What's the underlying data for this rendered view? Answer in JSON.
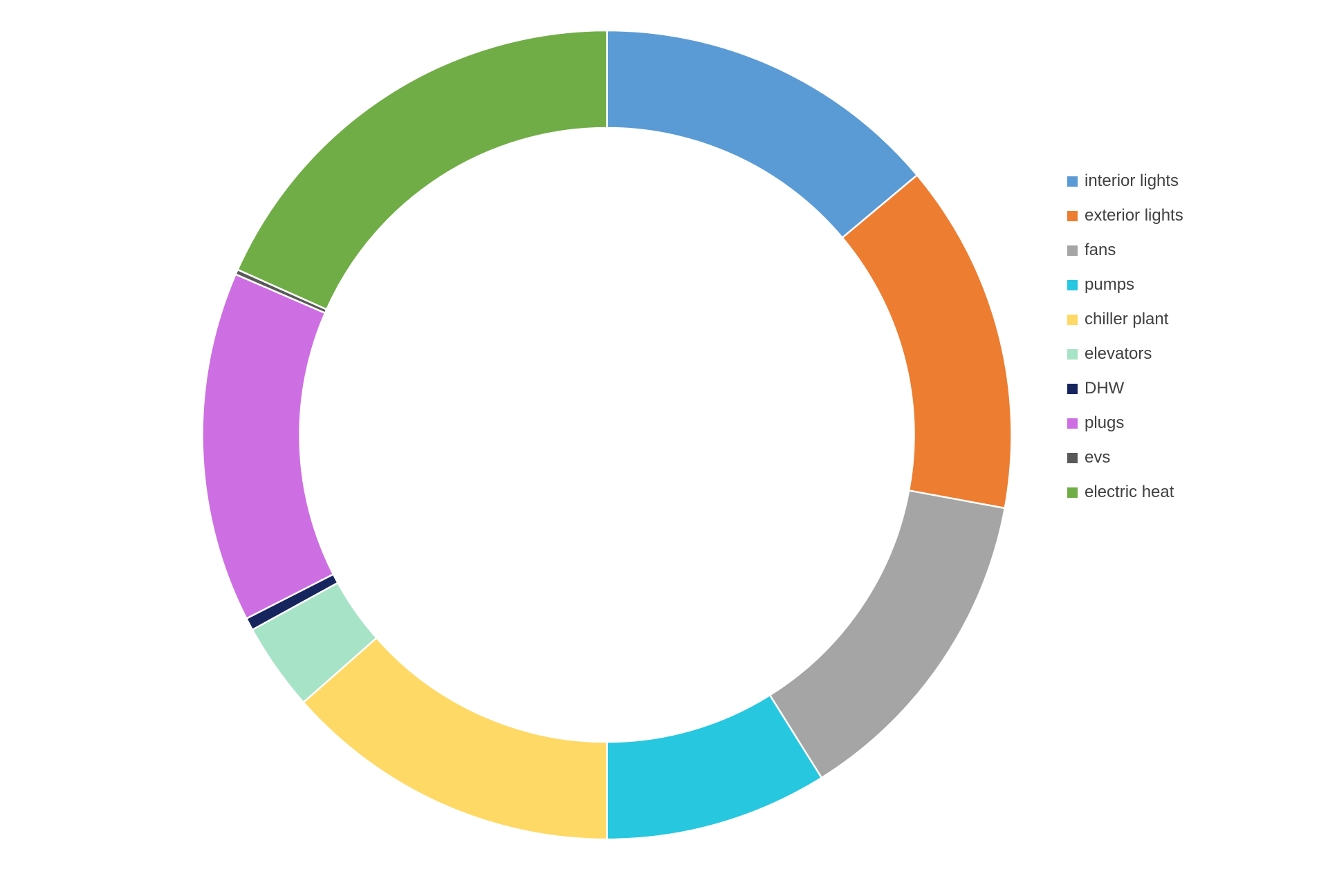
{
  "page": {
    "background_color": "#ffffff",
    "title": ""
  },
  "chart_data": {
    "type": "pie",
    "subtype": "donut",
    "title": "",
    "legend_position": "right",
    "donut_hole_ratio": 0.76,
    "start_angle_deg": 0,
    "direction": "clockwise",
    "separator_color": "#ffffff",
    "values_unit": "percent-of-whole (estimated from arc angles; chart shows no numeric labels)",
    "series": [
      {
        "name": "interior lights",
        "value": 13.9,
        "color": "#5B9BD5"
      },
      {
        "name": "exterior lights",
        "value": 14.0,
        "color": "#ED7D31"
      },
      {
        "name": "fans",
        "value": 13.2,
        "color": "#A5A5A5"
      },
      {
        "name": "pumps",
        "value": 8.9,
        "color": "#27C7DF"
      },
      {
        "name": "chiller plant",
        "value": 13.5,
        "color": "#FFD966"
      },
      {
        "name": "elevators",
        "value": 3.5,
        "color": "#A7E3C6"
      },
      {
        "name": "DHW",
        "value": 0.5,
        "color": "#17255F"
      },
      {
        "name": "plugs",
        "value": 14.0,
        "color": "#CD6FE2"
      },
      {
        "name": "evs",
        "value": 0.2,
        "color": "#595959"
      },
      {
        "name": "electric heat",
        "value": 18.3,
        "color": "#70AD47"
      }
    ],
    "legend_text_color": "#404040"
  }
}
